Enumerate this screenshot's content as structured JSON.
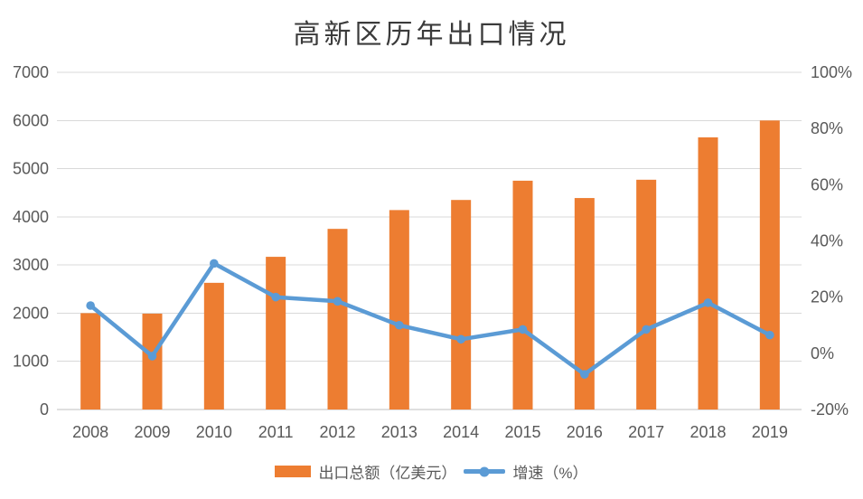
{
  "title": "高新区历年出口情况",
  "chart_data": {
    "type": "combo-bar-line",
    "title": "高新区历年出口情况",
    "categories": [
      "2008",
      "2009",
      "2010",
      "2011",
      "2012",
      "2013",
      "2014",
      "2015",
      "2016",
      "2017",
      "2018",
      "2019"
    ],
    "series": [
      {
        "name": "出口总额（亿美元）",
        "type": "bar",
        "axis": "left",
        "color": "#ED7D31",
        "values": [
          2000,
          1990,
          2630,
          3170,
          3750,
          4140,
          4350,
          4750,
          4390,
          4770,
          5650,
          6000
        ]
      },
      {
        "name": "增速（%）",
        "type": "line",
        "axis": "right",
        "color": "#5B9BD5",
        "values": [
          17,
          -1,
          32,
          20,
          18.5,
          10,
          5,
          8.5,
          -7.5,
          8.5,
          18,
          6.5
        ]
      }
    ],
    "left_axis": {
      "min": 0,
      "max": 7000,
      "step": 1000,
      "tick_labels": [
        "0",
        "1000",
        "2000",
        "3000",
        "4000",
        "5000",
        "6000",
        "7000"
      ]
    },
    "right_axis": {
      "min": -20,
      "max": 100,
      "step": 20,
      "tick_labels": [
        "-20%",
        "0%",
        "20%",
        "40%",
        "60%",
        "80%",
        "100%"
      ]
    },
    "grid": true,
    "legend_position": "bottom"
  },
  "colors": {
    "bar": "#ED7D31",
    "line": "#5B9BD5",
    "gridline": "#D9D9D9",
    "axis_line": "#BFBFBF",
    "axis_text": "#595959",
    "title_text": "#3B3B3B",
    "background": "#FFFFFF"
  }
}
